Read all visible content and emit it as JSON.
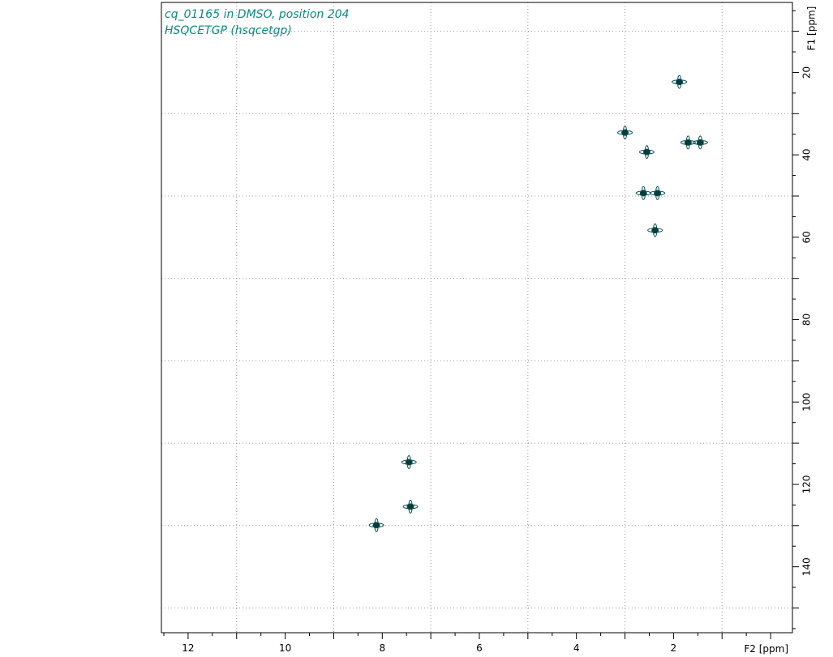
{
  "chart_data": {
    "type": "scatter",
    "title_lines": [
      "cq_01165 in DMSO, position 204",
      "HSQCETGP (hsqcetgp)"
    ],
    "xlabel": "F2 [ppm]",
    "ylabel": "F1 [ppm]",
    "xlim": [
      12.55,
      -0.45
    ],
    "ylim": [
      3,
      156
    ],
    "x_ticks": [
      12,
      10,
      8,
      6,
      4,
      2
    ],
    "y_ticks": [
      20,
      40,
      60,
      80,
      100,
      120,
      140
    ],
    "grid": true,
    "colors": {
      "contour": "#0a4f4f",
      "contour_fill": "#073b3b",
      "caption": "#0a8a80",
      "grid": "#999999"
    },
    "peaks": [
      {
        "x": 1.88,
        "y": 22.3
      },
      {
        "x": 3.0,
        "y": 34.6
      },
      {
        "x": 2.55,
        "y": 39.3
      },
      {
        "x": 1.7,
        "y": 37.0
      },
      {
        "x": 1.45,
        "y": 37.0
      },
      {
        "x": 2.62,
        "y": 49.3
      },
      {
        "x": 2.33,
        "y": 49.3
      },
      {
        "x": 2.38,
        "y": 58.3
      },
      {
        "x": 7.45,
        "y": 114.6
      },
      {
        "x": 7.42,
        "y": 125.4
      },
      {
        "x": 8.12,
        "y": 129.9
      }
    ]
  }
}
